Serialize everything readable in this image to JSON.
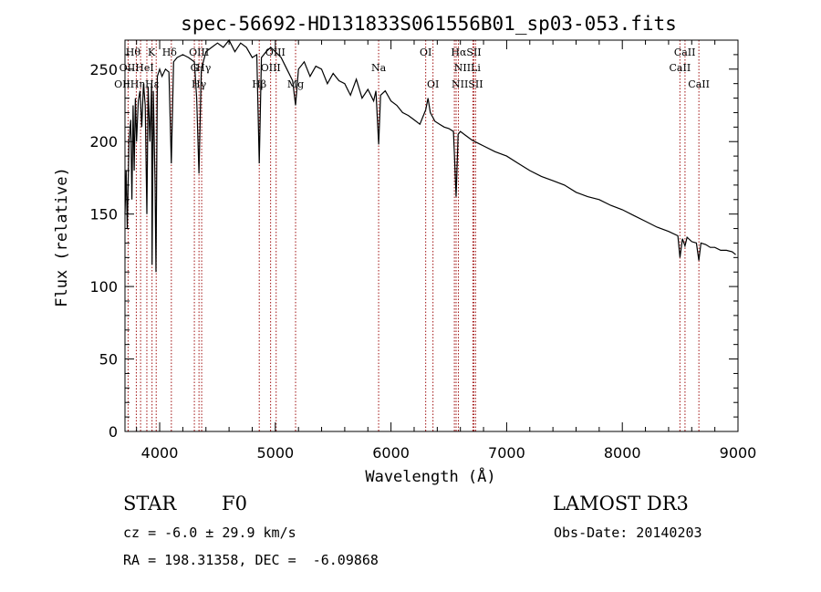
{
  "chart_data": {
    "type": "line",
    "title": "spec-56692-HD131833S061556B01_sp03-053.fits",
    "xlabel": "Wavelength (Å)",
    "ylabel": "Flux (relative)",
    "xlim": [
      3700,
      9000
    ],
    "ylim": [
      0,
      270
    ],
    "xticks": [
      4000,
      5000,
      6000,
      7000,
      8000,
      9000
    ],
    "yticks": [
      0,
      50,
      100,
      150,
      200,
      250
    ],
    "grid": false,
    "series": [
      {
        "name": "flux",
        "x": [
          3700,
          3710,
          3720,
          3735,
          3750,
          3760,
          3770,
          3780,
          3790,
          3800,
          3815,
          3830,
          3845,
          3860,
          3875,
          3889,
          3900,
          3915,
          3930,
          3934,
          3945,
          3960,
          3968,
          3980,
          4000,
          4020,
          4050,
          4080,
          4101,
          4120,
          4150,
          4200,
          4250,
          4300,
          4320,
          4340,
          4360,
          4400,
          4450,
          4500,
          4550,
          4600,
          4650,
          4700,
          4750,
          4800,
          4840,
          4861,
          4880,
          4920,
          4960,
          5000,
          5050,
          5100,
          5150,
          5175,
          5200,
          5250,
          5300,
          5350,
          5400,
          5450,
          5500,
          5550,
          5600,
          5650,
          5700,
          5750,
          5800,
          5850,
          5870,
          5893,
          5910,
          5950,
          6000,
          6050,
          6100,
          6150,
          6200,
          6250,
          6300,
          6320,
          6340,
          6380,
          6420,
          6460,
          6500,
          6540,
          6563,
          6580,
          6600,
          6650,
          6700,
          6750,
          6800,
          6900,
          7000,
          7100,
          7200,
          7300,
          7400,
          7500,
          7600,
          7700,
          7800,
          7900,
          8000,
          8100,
          8200,
          8300,
          8400,
          8480,
          8498,
          8520,
          8542,
          8560,
          8600,
          8640,
          8662,
          8680,
          8720,
          8760,
          8800,
          8850,
          8900,
          8950,
          8980
        ],
        "values": [
          150,
          180,
          140,
          200,
          215,
          160,
          225,
          180,
          230,
          200,
          228,
          235,
          210,
          240,
          225,
          150,
          238,
          200,
          240,
          115,
          235,
          170,
          110,
          245,
          250,
          245,
          250,
          248,
          185,
          255,
          258,
          260,
          258,
          255,
          230,
          178,
          250,
          262,
          265,
          268,
          265,
          270,
          262,
          268,
          265,
          258,
          260,
          185,
          258,
          262,
          265,
          262,
          258,
          250,
          242,
          225,
          250,
          255,
          245,
          252,
          250,
          240,
          247,
          242,
          240,
          232,
          243,
          230,
          236,
          228,
          235,
          198,
          232,
          235,
          228,
          225,
          220,
          218,
          215,
          212,
          222,
          230,
          220,
          214,
          212,
          210,
          209,
          207,
          162,
          205,
          207,
          204,
          201,
          199,
          197,
          193,
          190,
          185,
          180,
          176,
          173,
          170,
          165,
          162,
          160,
          156,
          153,
          149,
          145,
          141,
          138,
          135,
          120,
          133,
          128,
          134,
          131,
          130,
          118,
          130,
          129,
          127,
          127,
          125,
          125,
          124,
          122
        ]
      }
    ],
    "lines": [
      {
        "name": "Hθ",
        "x": 3798
      },
      {
        "name": "OII",
        "x": 3727
      },
      {
        "name": "Hη",
        "x": 3835
      },
      {
        "name": "K",
        "x": 3934
      },
      {
        "name": "HeI",
        "x": 3889
      },
      {
        "name": "Hε",
        "x": 3970
      },
      {
        "name": "Hδ",
        "x": 4101
      },
      {
        "name": "G",
        "x": 4300
      },
      {
        "name": "Hγ",
        "x": 4340
      },
      {
        "name": "OIII",
        "x": 4363
      },
      {
        "name": "Hβ",
        "x": 4861
      },
      {
        "name": "OIII",
        "x": 4959
      },
      {
        "name": "OIII",
        "x": 5007
      },
      {
        "name": "Mg",
        "x": 5175
      },
      {
        "name": "Na",
        "x": 5893
      },
      {
        "name": "OI",
        "x": 6300
      },
      {
        "name": "OI",
        "x": 6363
      },
      {
        "name": "NII",
        "x": 6548
      },
      {
        "name": "Hα",
        "x": 6563
      },
      {
        "name": "NII",
        "x": 6583
      },
      {
        "name": "Li",
        "x": 6708
      },
      {
        "name": "SII",
        "x": 6716
      },
      {
        "name": "SII",
        "x": 6731
      },
      {
        "name": "CaII",
        "x": 8498
      },
      {
        "name": "CaII",
        "x": 8542
      },
      {
        "name": "CaII",
        "x": 8662
      }
    ],
    "labels_row1": [
      {
        "text": "Hθ",
        "x": 3770
      },
      {
        "text": "K",
        "x": 3930
      },
      {
        "text": "Hδ",
        "x": 4085
      },
      {
        "text": "OIII",
        "x": 4340
      },
      {
        "text": "OIII",
        "x": 5000
      },
      {
        "text": "OI",
        "x": 6300
      },
      {
        "text": "HαSII",
        "x": 6650
      },
      {
        "text": "CaII",
        "x": 8540
      }
    ],
    "labels_row2": [
      {
        "text": "OIIHeI",
        "x": 3800
      },
      {
        "text": "G",
        "x": 4300
      },
      {
        "text": "Hγ",
        "x": 4380
      },
      {
        "text": "OIII",
        "x": 4960
      },
      {
        "text": "Na",
        "x": 5893
      },
      {
        "text": "NIILi",
        "x": 6660
      },
      {
        "text": "CaII",
        "x": 8498
      }
    ],
    "labels_row3": [
      {
        "text": "OIIHηHε",
        "x": 3800
      },
      {
        "text": "Hγ",
        "x": 4340
      },
      {
        "text": "Hβ",
        "x": 4861
      },
      {
        "text": "Mg",
        "x": 5175
      },
      {
        "text": "OI",
        "x": 6363
      },
      {
        "text": "NIISII",
        "x": 6660
      },
      {
        "text": "CaII",
        "x": 8662
      }
    ]
  },
  "info": {
    "object_type": "STAR",
    "subclass": "F0",
    "survey": "LAMOST DR3",
    "cz": "cz = -6.0 ± 29.9 km/s",
    "obs_date": "Obs-Date: 20140203",
    "coords": "RA = 198.31358, DEC =  -6.09868"
  }
}
